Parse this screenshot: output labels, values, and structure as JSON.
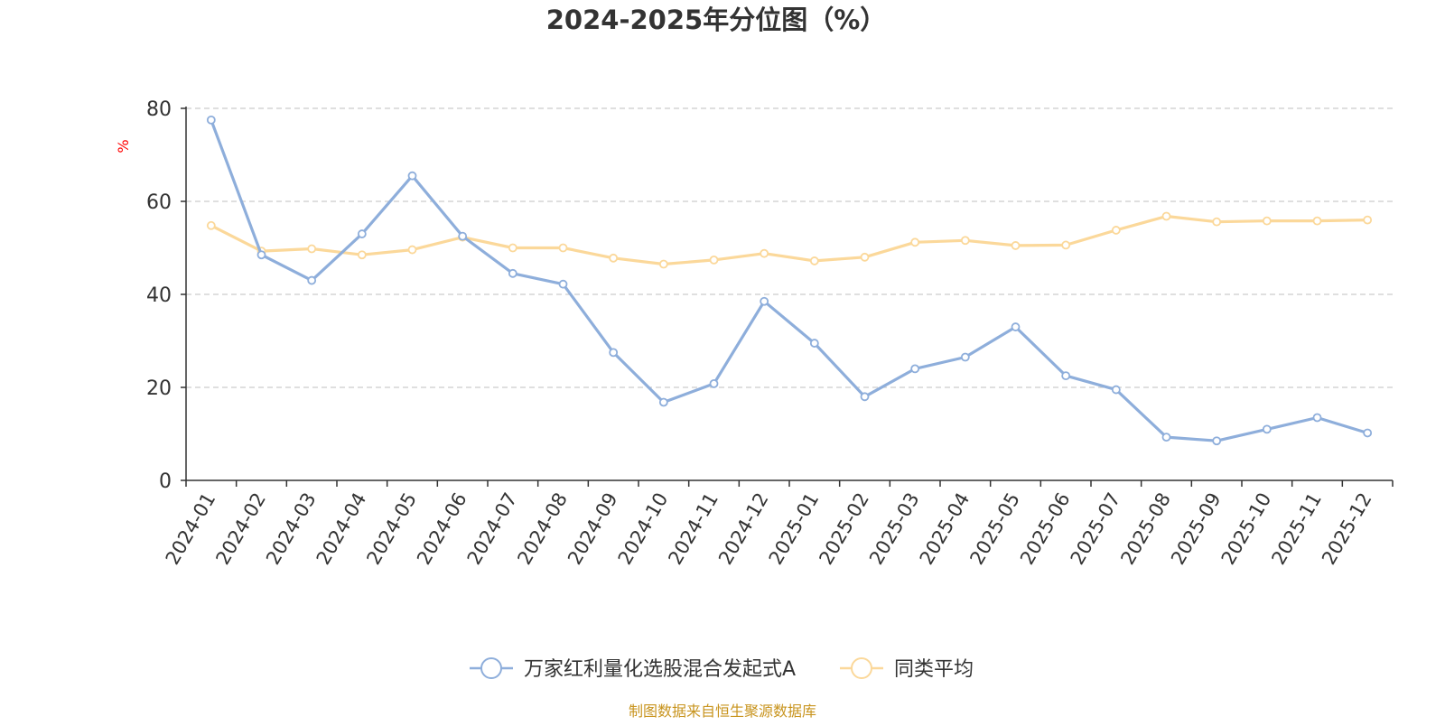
{
  "chart_data": {
    "type": "line",
    "title": "2024-2025年分位图（%）",
    "ylabel": "%",
    "xlabel": "",
    "ylim": [
      0,
      80
    ],
    "yticks": [
      0,
      20,
      40,
      60,
      80
    ],
    "grid": true,
    "legend_position": "bottom-center",
    "categories": [
      "2024-01",
      "2024-02",
      "2024-03",
      "2024-04",
      "2024-05",
      "2024-06",
      "2024-07",
      "2024-08",
      "2024-09",
      "2024-10",
      "2024-11",
      "2024-12",
      "2025-01",
      "2025-02",
      "2025-03",
      "2025-04",
      "2025-05",
      "2025-06",
      "2025-07",
      "2025-08",
      "2025-09",
      "2025-10",
      "2025-11",
      "2025-12"
    ],
    "series": [
      {
        "name": "万家红利量化选股混合发起式A",
        "color": "#8eaedb",
        "values": [
          77.5,
          48.5,
          43.0,
          53.0,
          65.5,
          52.5,
          44.5,
          42.2,
          27.5,
          16.8,
          20.8,
          38.5,
          29.5,
          18.0,
          24.0,
          26.5,
          33.0,
          22.5,
          19.5,
          9.3,
          8.5,
          11.0,
          13.5,
          10.2
        ]
      },
      {
        "name": "同类平均",
        "color": "#fbd89a",
        "values": [
          54.8,
          49.3,
          49.8,
          48.5,
          49.6,
          52.3,
          50.0,
          50.0,
          47.8,
          46.5,
          47.4,
          48.8,
          47.2,
          48.0,
          51.2,
          51.6,
          50.5,
          50.6,
          53.8,
          56.8,
          55.6,
          55.8,
          55.8,
          56.0
        ]
      }
    ]
  },
  "footer": {
    "source": "制图数据来自恒生聚源数据库"
  },
  "colors": {
    "title": "#333333",
    "axis": "#333333",
    "grid": "#cccccc",
    "ylabel": "#ff0000",
    "footer": "#c8941e"
  }
}
